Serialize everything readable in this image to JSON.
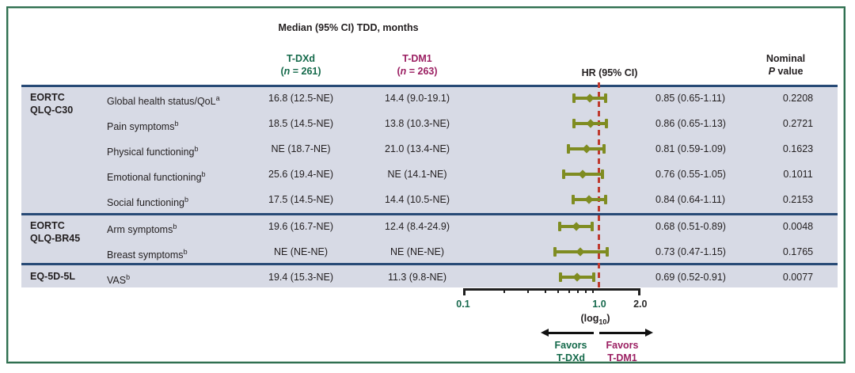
{
  "title": "Median (95% CI) TDD, months",
  "columns": {
    "tdxd": {
      "label": "T-DXd",
      "n_open": "(",
      "n_var": "n",
      "n_rest": " = 261)",
      "color": "#156a4b"
    },
    "tdm1": {
      "label": "T-DM1",
      "n_open": "(",
      "n_var": "n",
      "n_rest": " = 263)",
      "color": "#9b1f62"
    },
    "hr_header": "HR (95% CI)",
    "p_header_line1": "Nominal",
    "p_header_var": "P",
    "p_header_rest": " value"
  },
  "chart_data": {
    "type": "forest",
    "x_axis": {
      "scale": "log10",
      "min": 0.1,
      "max": 2.0,
      "labeled_ticks": [
        {
          "value": 0.1,
          "label": "0.1",
          "color": "#17694d"
        },
        {
          "value": 1.0,
          "label": "1.0",
          "color": "#17694d"
        },
        {
          "value": 2.0,
          "label": "2.0",
          "color": "#2b2b2b"
        }
      ],
      "minor_ticks": [
        0.2,
        0.3,
        0.4,
        0.5,
        0.6,
        0.7,
        0.8,
        0.9
      ],
      "scale_note_open": "(log",
      "scale_note_sub": "10",
      "scale_note_close": ")"
    },
    "reference_line": {
      "value": 1.0,
      "color": "#bf3a2f",
      "style": "dashed"
    },
    "marker_color": "#7f8c21",
    "groups": [
      {
        "line1": "EORTC",
        "line2": "QLQ-C30",
        "first_row": 0
      },
      {
        "line1": "EORTC",
        "line2": "QLQ-BR45",
        "first_row": 5
      },
      {
        "line1": "EQ-5D-5L",
        "line2": "",
        "first_row": 7
      }
    ],
    "rows": [
      {
        "group": "EORTC QLQ-C30",
        "label": "Global health status/QoL",
        "sup": "a",
        "tdxd": "16.8 (12.5-NE)",
        "tdm1": "14.4 (9.0-19.1)",
        "hr": 0.85,
        "ci_low": 0.65,
        "ci_high": 1.11,
        "hr_text": "0.85 (0.65-1.11)",
        "p": "0.2208"
      },
      {
        "group": "EORTC QLQ-C30",
        "label": "Pain symptoms",
        "sup": "b",
        "tdxd": "18.5 (14.5-NE)",
        "tdm1": "13.8 (10.3-NE)",
        "hr": 0.86,
        "ci_low": 0.65,
        "ci_high": 1.13,
        "hr_text": "0.86 (0.65-1.13)",
        "p": "0.2721"
      },
      {
        "group": "EORTC QLQ-C30",
        "label": "Physical functioning",
        "sup": "b",
        "tdxd": "NE (18.7-NE)",
        "tdm1": "21.0 (13.4-NE)",
        "hr": 0.81,
        "ci_low": 0.59,
        "ci_high": 1.09,
        "hr_text": "0.81 (0.59-1.09)",
        "p": "0.1623"
      },
      {
        "group": "EORTC QLQ-C30",
        "label": "Emotional functioning",
        "sup": "b",
        "tdxd": "25.6 (19.4-NE)",
        "tdm1": "NE (14.1-NE)",
        "hr": 0.76,
        "ci_low": 0.55,
        "ci_high": 1.05,
        "hr_text": "0.76 (0.55-1.05)",
        "p": "0.1011"
      },
      {
        "group": "EORTC QLQ-C30",
        "label": "Social functioning",
        "sup": "b",
        "tdxd": "17.5 (14.5-NE)",
        "tdm1": "14.4 (10.5-NE)",
        "hr": 0.84,
        "ci_low": 0.64,
        "ci_high": 1.11,
        "hr_text": "0.84 (0.64-1.11)",
        "p": "0.2153"
      },
      {
        "group": "EORTC QLQ-BR45",
        "label": "Arm symptoms",
        "sup": "b",
        "tdxd": "19.6 (16.7-NE)",
        "tdm1": "12.4 (8.4-24.9)",
        "hr": 0.68,
        "ci_low": 0.51,
        "ci_high": 0.89,
        "hr_text": "0.68 (0.51-0.89)",
        "p": "0.0048"
      },
      {
        "group": "EORTC QLQ-BR45",
        "label": "Breast symptoms",
        "sup": "b",
        "tdxd": "NE (NE-NE)",
        "tdm1": "NE (NE-NE)",
        "hr": 0.73,
        "ci_low": 0.47,
        "ci_high": 1.15,
        "hr_text": "0.73 (0.47-1.15)",
        "p": "0.1765"
      },
      {
        "group": "EQ-5D-5L",
        "label": "VAS",
        "sup": "b",
        "tdxd": "19.4 (15.3-NE)",
        "tdm1": "11.3 (9.8-NE)",
        "hr": 0.69,
        "ci_low": 0.52,
        "ci_high": 0.91,
        "hr_text": "0.69 (0.52-0.91)",
        "p": "0.0077"
      }
    ],
    "legend": {
      "favors_left_line1": "Favors",
      "favors_left_line2": "T-DXd",
      "favors_right_line1": "Favors",
      "favors_right_line2": "T-DM1"
    }
  }
}
